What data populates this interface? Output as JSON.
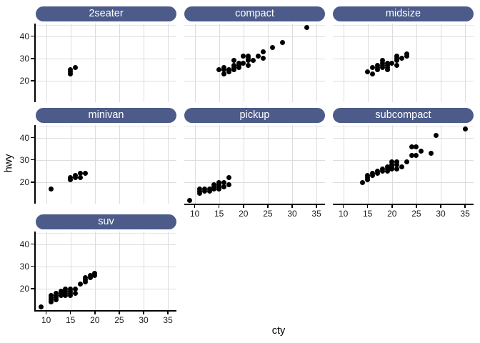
{
  "chart_data": {
    "type": "scatter",
    "xlabel": "cty",
    "ylabel": "hwy",
    "xlim": [
      7.86,
      36.74
    ],
    "ylim": [
      10.4,
      45.6
    ],
    "x_ticks": [
      10,
      15,
      20,
      25,
      30,
      35
    ],
    "y_ticks": [
      20,
      30,
      40
    ],
    "y_minor_gridlines": [
      45
    ],
    "grid": true,
    "legend": "none",
    "facets": [
      {
        "label": "2seater",
        "row": 0,
        "col": 0,
        "show_y_axis": true,
        "show_x_axis": false,
        "points": [
          [
            15,
            23
          ],
          [
            15,
            24
          ],
          [
            15,
            25
          ],
          [
            16,
            26
          ]
        ]
      },
      {
        "label": "compact",
        "row": 0,
        "col": 1,
        "show_y_axis": false,
        "show_x_axis": false,
        "points": [
          [
            15,
            25
          ],
          [
            16,
            23
          ],
          [
            16,
            25
          ],
          [
            16,
            26
          ],
          [
            17,
            24
          ],
          [
            17,
            25
          ],
          [
            18,
            25
          ],
          [
            18,
            26
          ],
          [
            18,
            27
          ],
          [
            18,
            29
          ],
          [
            19,
            26
          ],
          [
            19,
            27
          ],
          [
            19,
            28
          ],
          [
            20,
            28
          ],
          [
            20,
            31
          ],
          [
            21,
            27
          ],
          [
            21,
            29
          ],
          [
            21,
            30
          ],
          [
            21,
            31
          ],
          [
            22,
            29
          ],
          [
            23,
            31
          ],
          [
            24,
            30
          ],
          [
            24,
            33
          ],
          [
            26,
            35
          ],
          [
            28,
            37
          ],
          [
            33,
            44
          ]
        ]
      },
      {
        "label": "midsize",
        "row": 0,
        "col": 2,
        "show_y_axis": false,
        "show_x_axis": false,
        "points": [
          [
            15,
            24
          ],
          [
            16,
            23
          ],
          [
            16,
            26
          ],
          [
            17,
            25
          ],
          [
            17,
            26
          ],
          [
            17,
            27
          ],
          [
            18,
            26
          ],
          [
            18,
            27
          ],
          [
            18,
            28
          ],
          [
            18,
            29
          ],
          [
            19,
            25
          ],
          [
            19,
            26
          ],
          [
            19,
            27
          ],
          [
            19,
            28
          ],
          [
            20,
            28
          ],
          [
            21,
            27
          ],
          [
            21,
            29
          ],
          [
            21,
            30
          ],
          [
            21,
            31
          ],
          [
            22,
            30
          ],
          [
            23,
            31
          ],
          [
            23,
            32
          ]
        ]
      },
      {
        "label": "minivan",
        "row": 1,
        "col": 0,
        "show_y_axis": true,
        "show_x_axis": false,
        "points": [
          [
            11,
            17
          ],
          [
            15,
            21
          ],
          [
            15,
            22
          ],
          [
            16,
            22
          ],
          [
            16,
            23
          ],
          [
            17,
            22
          ],
          [
            17,
            24
          ],
          [
            18,
            24
          ]
        ]
      },
      {
        "label": "pickup",
        "row": 1,
        "col": 1,
        "show_y_axis": false,
        "show_x_axis": true,
        "points": [
          [
            9,
            12
          ],
          [
            11,
            15
          ],
          [
            11,
            16
          ],
          [
            11,
            17
          ],
          [
            12,
            16
          ],
          [
            12,
            17
          ],
          [
            13,
            16
          ],
          [
            13,
            17
          ],
          [
            14,
            17
          ],
          [
            14,
            18
          ],
          [
            14,
            19
          ],
          [
            15,
            17
          ],
          [
            15,
            18
          ],
          [
            15,
            19
          ],
          [
            15,
            20
          ],
          [
            16,
            18
          ],
          [
            16,
            20
          ],
          [
            17,
            19
          ],
          [
            17,
            22
          ]
        ]
      },
      {
        "label": "subcompact",
        "row": 1,
        "col": 2,
        "show_y_axis": false,
        "show_x_axis": true,
        "points": [
          [
            14,
            20
          ],
          [
            15,
            21
          ],
          [
            15,
            22
          ],
          [
            15,
            23
          ],
          [
            16,
            23
          ],
          [
            16,
            24
          ],
          [
            17,
            24
          ],
          [
            17,
            25
          ],
          [
            18,
            25
          ],
          [
            18,
            26
          ],
          [
            19,
            25
          ],
          [
            19,
            26
          ],
          [
            19,
            27
          ],
          [
            20,
            26
          ],
          [
            20,
            27
          ],
          [
            20,
            28
          ],
          [
            20,
            29
          ],
          [
            21,
            26
          ],
          [
            21,
            28
          ],
          [
            21,
            29
          ],
          [
            22,
            27
          ],
          [
            23,
            29
          ],
          [
            24,
            32
          ],
          [
            25,
            32
          ],
          [
            24,
            36
          ],
          [
            25,
            36
          ],
          [
            26,
            34
          ],
          [
            28,
            33
          ],
          [
            29,
            41
          ],
          [
            35,
            44
          ]
        ]
      },
      {
        "label": "suv",
        "row": 2,
        "col": 0,
        "show_y_axis": true,
        "show_x_axis": true,
        "points": [
          [
            9,
            12
          ],
          [
            11,
            14
          ],
          [
            11,
            15
          ],
          [
            11,
            16
          ],
          [
            11,
            17
          ],
          [
            12,
            15
          ],
          [
            12,
            16
          ],
          [
            12,
            17
          ],
          [
            12,
            18
          ],
          [
            13,
            17
          ],
          [
            13,
            18
          ],
          [
            13,
            19
          ],
          [
            14,
            17
          ],
          [
            14,
            18
          ],
          [
            14,
            19
          ],
          [
            14,
            20
          ],
          [
            15,
            17
          ],
          [
            15,
            18
          ],
          [
            15,
            19
          ],
          [
            15,
            20
          ],
          [
            16,
            18
          ],
          [
            16,
            20
          ],
          [
            17,
            22
          ],
          [
            18,
            23
          ],
          [
            18,
            24
          ],
          [
            18,
            25
          ],
          [
            19,
            25
          ],
          [
            19,
            26
          ],
          [
            20,
            26
          ],
          [
            20,
            27
          ]
        ]
      }
    ]
  },
  "colors": {
    "strip_fill": "#4c5b89",
    "strip_text": "#ffffff",
    "grid_major": "#dddddd",
    "grid_minor": "#e7e7e7",
    "axis_line": "#000000",
    "tick_label": "#1a1a1a",
    "axis_title": "#000000",
    "point": "#000000",
    "background": "#ffffff"
  }
}
